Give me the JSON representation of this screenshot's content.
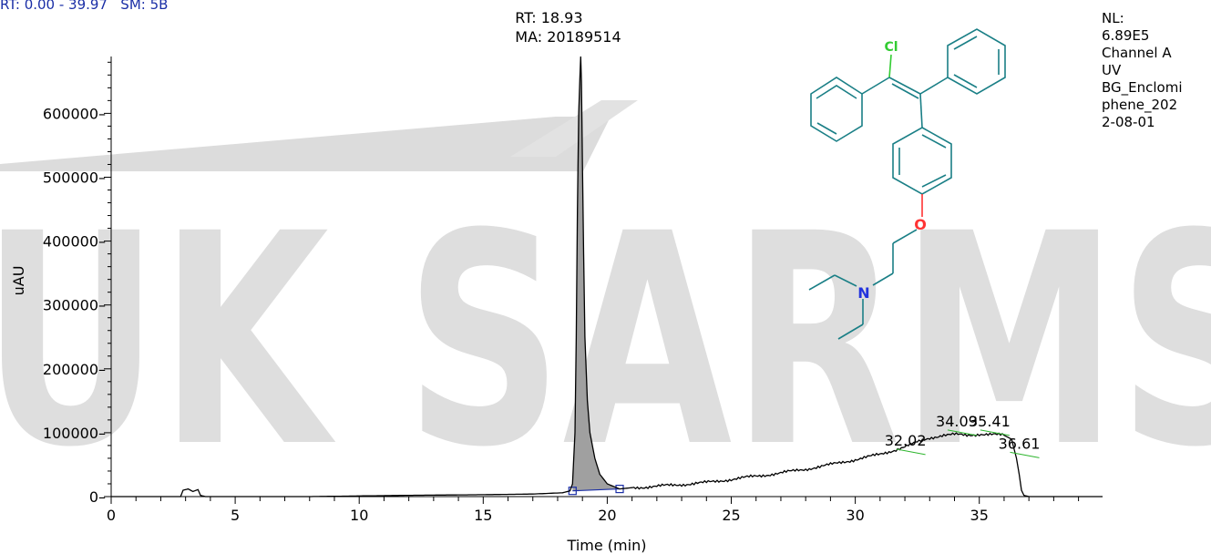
{
  "header": {
    "rt_label": "RT:",
    "rt_range": "0.00 - 39.97",
    "sm_label": "SM:",
    "sm_value": "5B"
  },
  "watermark": {
    "text": "UK SARMS"
  },
  "colors": {
    "trace": "#000000",
    "peak_fill": "#a0a0a0",
    "baseline": "#1a2ea6",
    "peak_label_tick": "#2db52d",
    "watermark": "#dedede",
    "header_text": "#1a2ea6",
    "molecule_bond": "#1a7f86",
    "chlorine": "#33cc33",
    "oxygen": "#ff3333",
    "nitrogen": "#2233dd"
  },
  "side_info": {
    "lines": [
      "NL:",
      "6.89E5",
      "Channel A",
      "UV",
      "BG_Enclomi",
      "phene_202",
      "2-08-01"
    ]
  },
  "molecule": {
    "atoms": {
      "chlorine": "Cl",
      "oxygen": "O",
      "nitrogen": "N"
    }
  },
  "chart_data": {
    "type": "line",
    "title": "",
    "xlabel": "Time (min)",
    "ylabel": "uAU",
    "xlim": [
      0,
      39.97
    ],
    "ylim": [
      0,
      689000
    ],
    "x_ticks": [
      0,
      5,
      10,
      15,
      20,
      25,
      30,
      35
    ],
    "x_tick_labels": [
      "0",
      "5",
      "10",
      "15",
      "20",
      "25",
      "30",
      "35"
    ],
    "y_ticks": [
      0,
      100000,
      200000,
      300000,
      400000,
      500000,
      600000
    ],
    "y_tick_labels": [
      "0",
      "100000",
      "200000",
      "300000",
      "400000",
      "500000",
      "600000"
    ],
    "grid": false,
    "series": [
      {
        "x": [
          0,
          2.8,
          2.9,
          3.1,
          3.3,
          3.5,
          3.6,
          3.8,
          5,
          8,
          10,
          12,
          15,
          17,
          18.2,
          18.5,
          18.6,
          18.7,
          18.75,
          18.8,
          18.85,
          18.9,
          18.93,
          18.96,
          19.0,
          19.05,
          19.1,
          19.2,
          19.3,
          19.5,
          19.7,
          20.0,
          20.5,
          21,
          22,
          23,
          24,
          25,
          26,
          27,
          28,
          29,
          30,
          31,
          32,
          32.5,
          33,
          33.5,
          34,
          34.5,
          35,
          35.5,
          36,
          36.3,
          36.5,
          36.61,
          36.7,
          36.8,
          37,
          38,
          39.97
        ],
        "y": [
          0,
          0,
          10000,
          12000,
          8000,
          11000,
          2000,
          0,
          0,
          0,
          1000,
          2000,
          3000,
          4000,
          6000,
          9000,
          20000,
          100000,
          250000,
          450000,
          600000,
          660000,
          689000,
          650000,
          520000,
          380000,
          250000,
          150000,
          100000,
          60000,
          35000,
          20000,
          12000,
          14000,
          16000,
          19000,
          22000,
          27000,
          32000,
          37000,
          43000,
          50000,
          58000,
          66000,
          78000,
          85000,
          92000,
          96000,
          97000,
          96000,
          98000,
          97000,
          96000,
          90000,
          60000,
          35000,
          10000,
          2000,
          0,
          0,
          0
        ]
      }
    ],
    "peak_area": {
      "start": 18.6,
      "end": 20.5,
      "baseline_start_y": 9000,
      "baseline_end_y": 12000
    },
    "annotations": [
      {
        "x": 18.93,
        "y": 689000,
        "lines": [
          "RT: 18.93",
          "MA: 20189514"
        ]
      },
      {
        "x": 32.02,
        "y": 80000,
        "lines": [
          "32.02"
        ]
      },
      {
        "x": 34.09,
        "y": 110000,
        "lines": [
          "34.09"
        ]
      },
      {
        "x": 35.41,
        "y": 110000,
        "lines": [
          "35.41"
        ]
      },
      {
        "x": 36.61,
        "y": 75000,
        "lines": [
          "36.61"
        ]
      }
    ]
  }
}
